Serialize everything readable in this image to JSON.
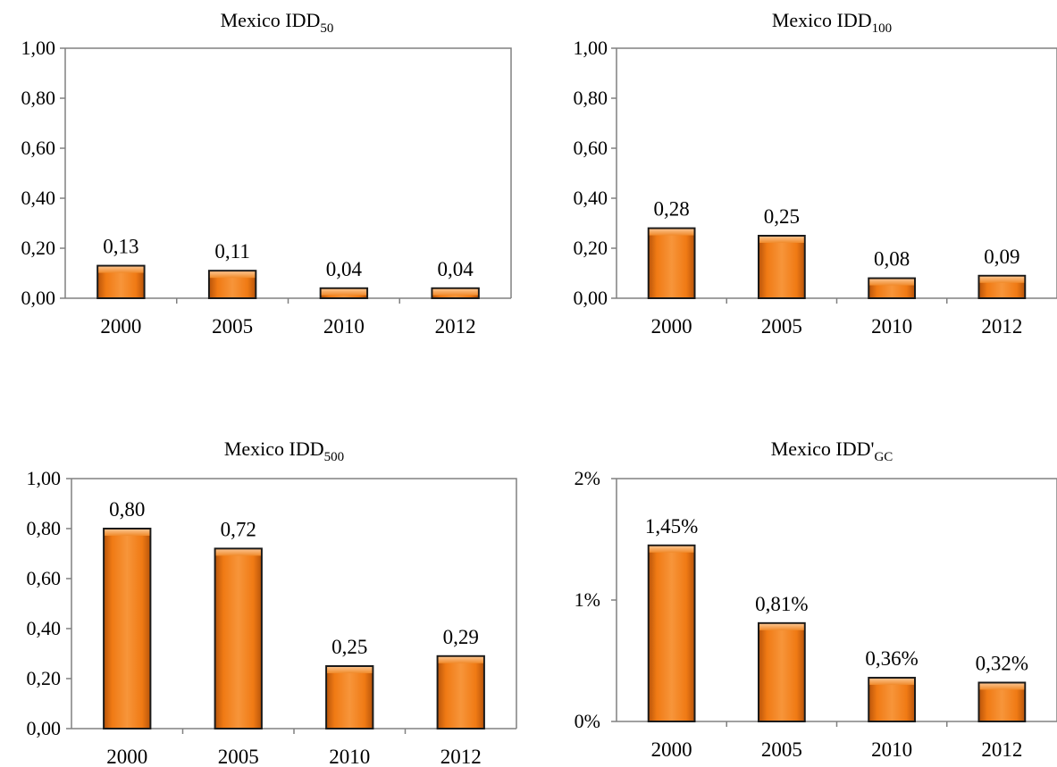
{
  "chart_data": [
    {
      "type": "bar",
      "title": "Mexico IDD",
      "title_sub": "50",
      "categories": [
        "2000",
        "2005",
        "2010",
        "2012"
      ],
      "values": [
        0.13,
        0.11,
        0.04,
        0.04
      ],
      "data_labels": [
        "0,13",
        "0,11",
        "0,04",
        "0,04"
      ],
      "ylim": [
        0,
        1
      ],
      "yticks": [
        0,
        0.2,
        0.4,
        0.6,
        0.8,
        1.0
      ],
      "ytick_labels": [
        "0,00",
        "0,20",
        "0,40",
        "0,60",
        "0,80",
        "1,00"
      ],
      "grid": false,
      "bar_color": "#F07A14"
    },
    {
      "type": "bar",
      "title": "Mexico IDD",
      "title_sub": "100",
      "categories": [
        "2000",
        "2005",
        "2010",
        "2012"
      ],
      "values": [
        0.28,
        0.25,
        0.08,
        0.09
      ],
      "data_labels": [
        "0,28",
        "0,25",
        "0,08",
        "0,09"
      ],
      "ylim": [
        0,
        1
      ],
      "yticks": [
        0,
        0.2,
        0.4,
        0.6,
        0.8,
        1.0
      ],
      "ytick_labels": [
        "0,00",
        "0,20",
        "0,40",
        "0,60",
        "0,80",
        "1,00"
      ],
      "grid": false,
      "bar_color": "#F07A14"
    },
    {
      "type": "bar",
      "title": "Mexico IDD",
      "title_sub": "500",
      "categories": [
        "2000",
        "2005",
        "2010",
        "2012"
      ],
      "values": [
        0.8,
        0.72,
        0.25,
        0.29
      ],
      "data_labels": [
        "0,80",
        "0,72",
        "0,25",
        "0,29"
      ],
      "ylim": [
        0,
        1
      ],
      "yticks": [
        0,
        0.2,
        0.4,
        0.6,
        0.8,
        1.0
      ],
      "ytick_labels": [
        "0,00",
        "0,20",
        "0,40",
        "0,60",
        "0,80",
        "1,00"
      ],
      "grid": false,
      "bar_color": "#F07A14"
    },
    {
      "type": "bar",
      "title": "Mexico IDD'",
      "title_sub": "GC",
      "categories": [
        "2000",
        "2005",
        "2010",
        "2012"
      ],
      "values": [
        1.45,
        0.81,
        0.36,
        0.32
      ],
      "data_labels": [
        "1,45%",
        "0,81%",
        "0,36%",
        "0,32%"
      ],
      "ylim": [
        0,
        2
      ],
      "yticks": [
        0,
        1,
        2
      ],
      "ytick_labels": [
        "0%",
        "1%",
        "2%"
      ],
      "grid": false,
      "bar_color": "#F07A14"
    }
  ]
}
